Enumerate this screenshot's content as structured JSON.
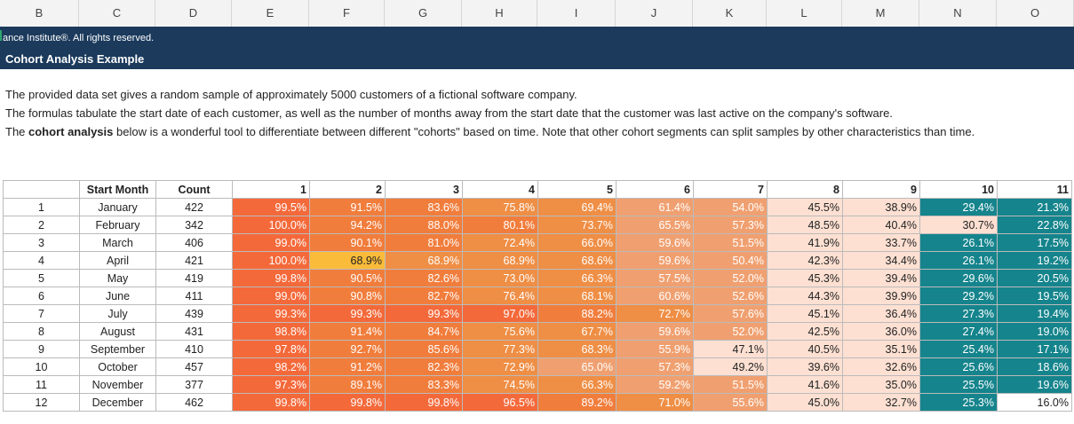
{
  "column_headers": [
    "B",
    "C",
    "D",
    "E",
    "F",
    "G",
    "H",
    "I",
    "J",
    "K",
    "L",
    "M",
    "N",
    "O"
  ],
  "banner": {
    "copyright": "ance Institute®. All rights reserved.",
    "title": "Cohort Analysis Example"
  },
  "description": {
    "line1": "The provided data set gives a random sample of approximately 5000 customers of a fictional software company.",
    "line2": "The formulas tabulate the start date of each customer, as well as the number of months away from the start date that the customer was last active on the company's software.",
    "line3_pre": "The ",
    "line3_bold": "cohort analysis",
    "line3_post": " below is a wonderful tool to differentiate between different \"cohorts\" based on time. Note that other cohort segments can split samples by other characteristics than time."
  },
  "table": {
    "header_start_month": "Start Month",
    "header_count": "Count",
    "month_numbers": [
      "1",
      "2",
      "3",
      "4",
      "5",
      "6",
      "7",
      "8",
      "9",
      "10",
      "11"
    ],
    "rows": [
      {
        "idx": "1",
        "month": "January",
        "count": "422",
        "values": [
          "99.5%",
          "91.5%",
          "83.6%",
          "75.8%",
          "69.4%",
          "61.4%",
          "54.0%",
          "45.5%",
          "38.9%",
          "29.4%",
          "21.3%"
        ]
      },
      {
        "idx": "2",
        "month": "February",
        "count": "342",
        "values": [
          "100.0%",
          "94.2%",
          "88.0%",
          "80.1%",
          "73.7%",
          "65.5%",
          "57.3%",
          "48.5%",
          "40.4%",
          "30.7%",
          "22.8%"
        ]
      },
      {
        "idx": "3",
        "month": "March",
        "count": "406",
        "values": [
          "99.0%",
          "90.1%",
          "81.0%",
          "72.4%",
          "66.0%",
          "59.6%",
          "51.5%",
          "41.9%",
          "33.7%",
          "26.1%",
          "17.5%"
        ]
      },
      {
        "idx": "4",
        "month": "April",
        "count": "421",
        "values": [
          "100.0%",
          "68.9%",
          "68.9%",
          "68.9%",
          "68.6%",
          "59.6%",
          "50.4%",
          "42.3%",
          "34.4%",
          "26.1%",
          "19.2%"
        ]
      },
      {
        "idx": "5",
        "month": "May",
        "count": "419",
        "values": [
          "99.8%",
          "90.5%",
          "82.6%",
          "73.0%",
          "66.3%",
          "57.5%",
          "52.0%",
          "45.3%",
          "39.4%",
          "29.6%",
          "20.5%"
        ]
      },
      {
        "idx": "6",
        "month": "June",
        "count": "411",
        "values": [
          "99.0%",
          "90.8%",
          "82.7%",
          "76.4%",
          "68.1%",
          "60.6%",
          "52.6%",
          "44.3%",
          "39.9%",
          "29.2%",
          "19.5%"
        ]
      },
      {
        "idx": "7",
        "month": "July",
        "count": "439",
        "values": [
          "99.3%",
          "99.3%",
          "99.3%",
          "97.0%",
          "88.2%",
          "72.7%",
          "57.6%",
          "45.1%",
          "36.4%",
          "27.3%",
          "19.4%"
        ]
      },
      {
        "idx": "8",
        "month": "August",
        "count": "431",
        "values": [
          "98.8%",
          "91.4%",
          "84.7%",
          "75.6%",
          "67.7%",
          "59.6%",
          "52.0%",
          "42.5%",
          "36.0%",
          "27.4%",
          "19.0%"
        ]
      },
      {
        "idx": "9",
        "month": "September",
        "count": "410",
        "values": [
          "97.8%",
          "92.7%",
          "85.6%",
          "77.3%",
          "68.3%",
          "55.9%",
          "47.1%",
          "40.5%",
          "35.1%",
          "25.4%",
          "17.1%"
        ]
      },
      {
        "idx": "10",
        "month": "October",
        "count": "457",
        "values": [
          "98.2%",
          "91.2%",
          "82.3%",
          "72.9%",
          "65.0%",
          "57.3%",
          "49.2%",
          "39.6%",
          "32.6%",
          "25.6%",
          "18.6%"
        ]
      },
      {
        "idx": "11",
        "month": "November",
        "count": "377",
        "values": [
          "97.3%",
          "89.1%",
          "83.3%",
          "74.5%",
          "66.3%",
          "59.2%",
          "51.5%",
          "41.6%",
          "35.0%",
          "25.5%",
          "19.6%"
        ]
      },
      {
        "idx": "12",
        "month": "December",
        "count": "462",
        "values": [
          "99.8%",
          "99.8%",
          "99.8%",
          "96.5%",
          "89.2%",
          "71.0%",
          "55.6%",
          "45.0%",
          "32.7%",
          "25.3%",
          "16.0%"
        ]
      }
    ]
  },
  "colors": {
    "banner_bg": "#1b3a5c",
    "heat_high": "#f4693a",
    "heat_mid_high": "#f17d3c",
    "heat_mid": "#ef8e45",
    "heat_low_mid": "#f0a070",
    "heat_light": "#fde0d2",
    "heat_teal": "#15848c",
    "highlight_yellow": "#fbbb3a"
  }
}
